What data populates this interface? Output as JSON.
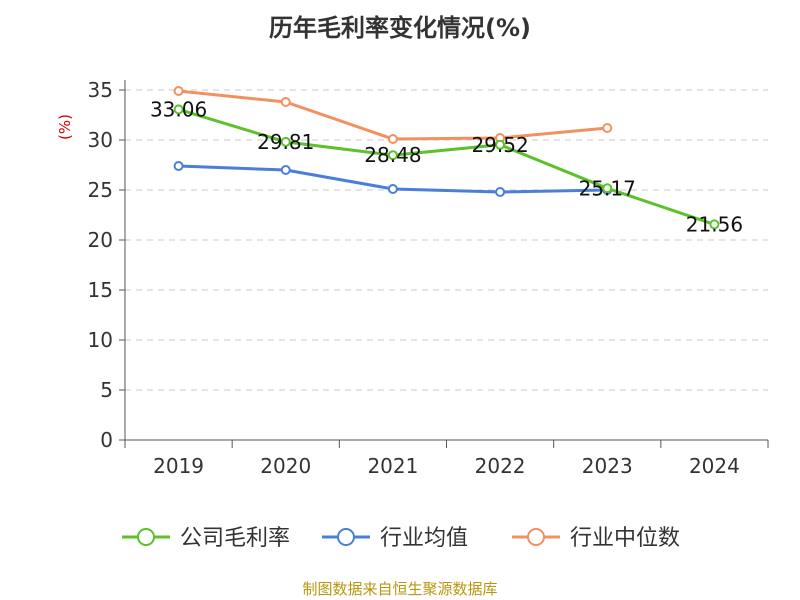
{
  "chart_data": {
    "type": "line",
    "title": "历年毛利率变化情况(%)",
    "ylabel": "(%)",
    "categories": [
      "2019",
      "2020",
      "2021",
      "2022",
      "2023",
      "2024"
    ],
    "ylim": [
      0,
      35
    ],
    "yticks": [
      "0",
      "5",
      "10",
      "15",
      "20",
      "25",
      "30",
      "35"
    ],
    "grid": true,
    "legend_position": "bottom",
    "series": [
      {
        "name": "公司毛利率",
        "color": "#5cc12a",
        "values": [
          33.06,
          29.81,
          28.48,
          29.52,
          25.17,
          21.56
        ],
        "labels": [
          "33.06",
          "29.81",
          "28.48",
          "29.52",
          "25.17",
          "21.56"
        ]
      },
      {
        "name": "行业均值",
        "color": "#4a7fd9",
        "values": [
          27.4,
          27.0,
          25.1,
          24.8,
          25.0,
          null
        ]
      },
      {
        "name": "行业中位数",
        "color": "#f39060",
        "values": [
          34.9,
          33.8,
          30.1,
          30.2,
          31.2,
          null
        ]
      }
    ]
  },
  "source": "制图数据来自恒生聚源数据库"
}
